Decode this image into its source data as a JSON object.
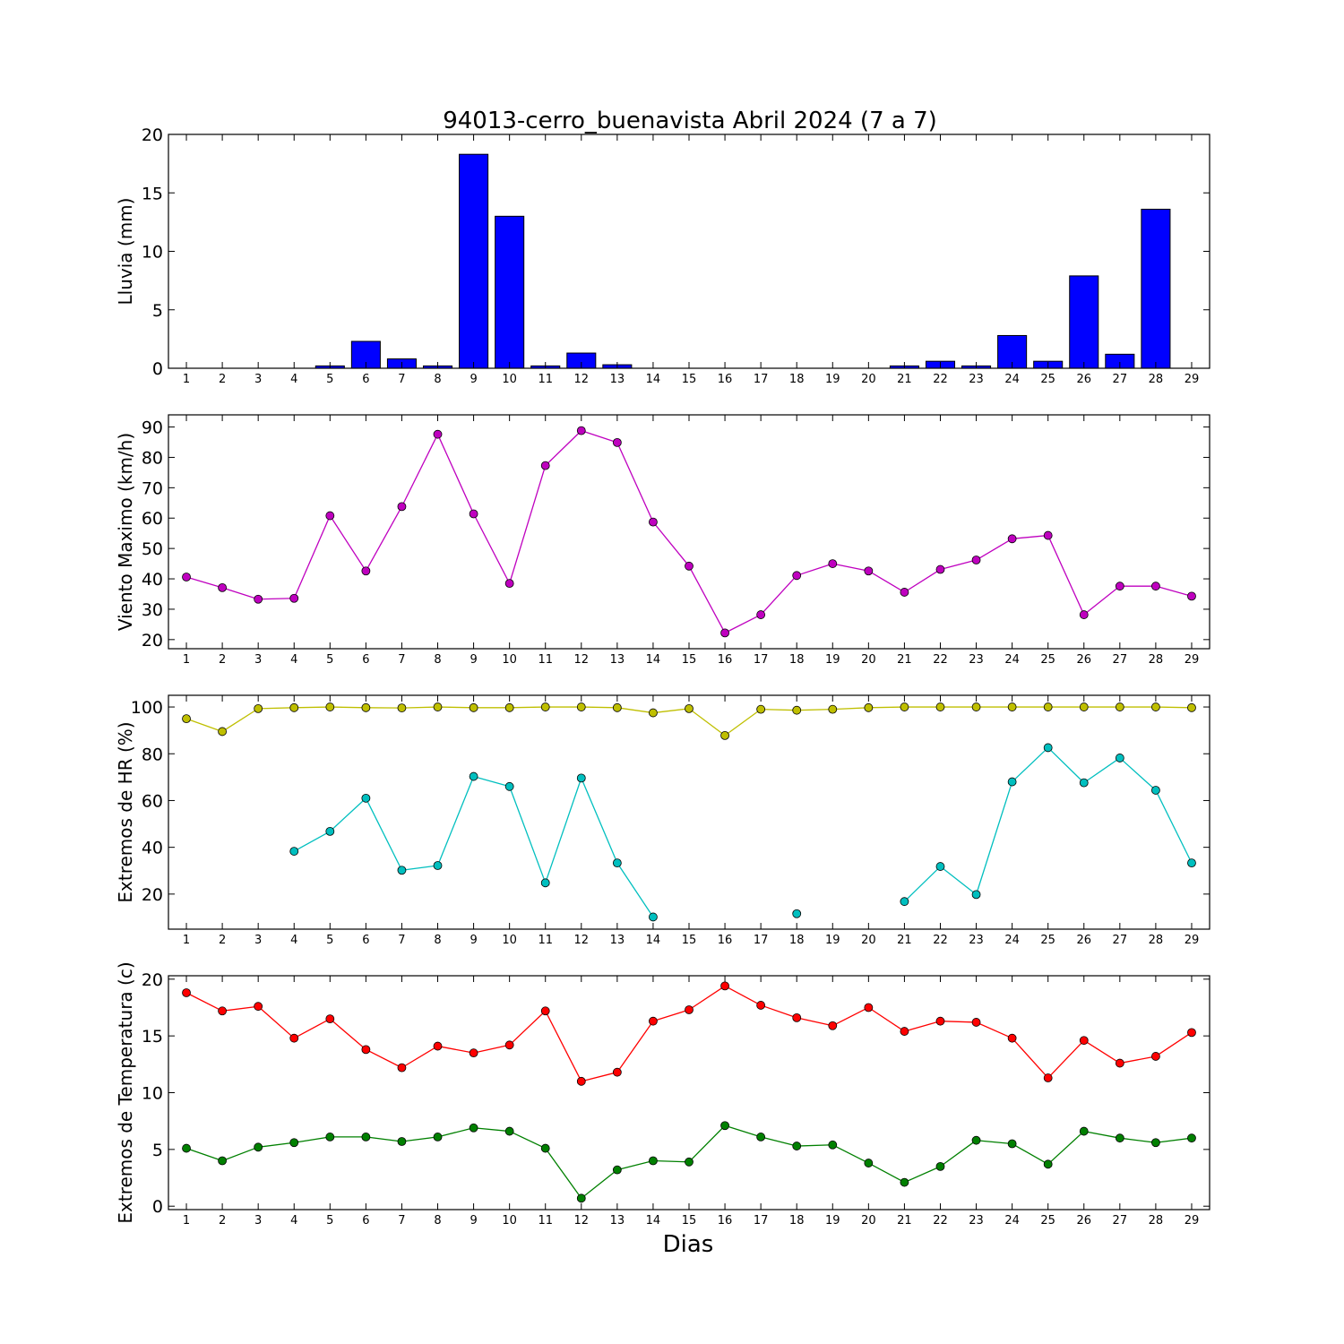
{
  "chart_data": [
    {
      "type": "bar",
      "title": "94013-cerro_buenavista Abril 2024  (7 a 7)",
      "ylabel": "Lluvia (mm)",
      "xlabel": "",
      "categories": [
        "1",
        "2",
        "3",
        "4",
        "5",
        "6",
        "7",
        "8",
        "9",
        "10",
        "11",
        "12",
        "13",
        "14",
        "15",
        "16",
        "17",
        "18",
        "19",
        "20",
        "21",
        "22",
        "23",
        "24",
        "25",
        "26",
        "27",
        "28",
        "29"
      ],
      "values": [
        0,
        0,
        0,
        0,
        0.2,
        2.3,
        0.8,
        0.2,
        18.3,
        13.0,
        0.2,
        1.3,
        0.3,
        0,
        0,
        0,
        0,
        0,
        0,
        0,
        0.2,
        0.6,
        0.2,
        2.8,
        0.6,
        7.9,
        1.2,
        13.6,
        0
      ],
      "ylim": [
        0,
        20
      ],
      "yticks": [
        0,
        5,
        10,
        15,
        20
      ],
      "color": "#0000ff"
    },
    {
      "type": "line",
      "ylabel": "Viento Maximo (km/h)",
      "xlabel": "",
      "x": [
        1,
        2,
        3,
        4,
        5,
        6,
        7,
        8,
        9,
        10,
        11,
        12,
        13,
        14,
        15,
        16,
        17,
        18,
        19,
        20,
        21,
        22,
        23,
        24,
        25,
        26,
        27,
        28,
        29
      ],
      "series": [
        {
          "color": "#bf00bf",
          "values": [
            40.6,
            37.1,
            33.3,
            33.6,
            60.8,
            42.6,
            63.8,
            87.6,
            61.4,
            38.5,
            77.3,
            88.8,
            84.9,
            58.7,
            44.2,
            22.2,
            28.2,
            41.1,
            45.0,
            42.6,
            35.6,
            43.1,
            46.2,
            53.2,
            54.3,
            28.2,
            37.6,
            37.6,
            34.3
          ]
        }
      ],
      "ylim": [
        17,
        94
      ],
      "yticks": [
        20,
        30,
        40,
        50,
        60,
        70,
        80,
        90
      ]
    },
    {
      "type": "line",
      "ylabel": "Extremos de HR (%)",
      "xlabel": "",
      "x": [
        1,
        2,
        3,
        4,
        5,
        6,
        7,
        8,
        9,
        10,
        11,
        12,
        13,
        14,
        15,
        16,
        17,
        18,
        19,
        20,
        21,
        22,
        23,
        24,
        25,
        26,
        27,
        28,
        29
      ],
      "series": [
        {
          "color": "#bfbf00",
          "values": [
            95,
            89.5,
            99.3,
            99.7,
            100,
            99.7,
            99.6,
            100,
            99.7,
            99.7,
            100,
            100,
            99.7,
            97.5,
            99.3,
            87.8,
            99,
            98.6,
            99,
            99.7,
            100,
            100,
            100,
            100,
            100,
            100,
            100,
            100,
            99.7
          ]
        },
        {
          "color": "#00bfbf",
          "values": [
            null,
            null,
            null,
            38.3,
            46.8,
            61,
            30.2,
            32.2,
            70.3,
            66,
            24.8,
            69.6,
            33.3,
            10.2,
            null,
            null,
            null,
            11.6,
            null,
            null,
            16.8,
            31.8,
            19.8,
            68,
            82.6,
            67.6,
            78.2,
            64.4,
            33.3
          ]
        }
      ],
      "ylim": [
        5,
        105
      ],
      "yticks": [
        20,
        40,
        60,
        80,
        100
      ]
    },
    {
      "type": "line",
      "ylabel": "Extremos de Temperatura (c)",
      "xlabel": "Dias",
      "x": [
        1,
        2,
        3,
        4,
        5,
        6,
        7,
        8,
        9,
        10,
        11,
        12,
        13,
        14,
        15,
        16,
        17,
        18,
        19,
        20,
        21,
        22,
        23,
        24,
        25,
        26,
        27,
        28,
        29
      ],
      "series": [
        {
          "color": "#ff0000",
          "values": [
            18.8,
            17.2,
            17.6,
            14.8,
            16.5,
            13.8,
            12.2,
            14.1,
            13.5,
            14.2,
            17.2,
            11.0,
            11.8,
            16.3,
            17.3,
            19.4,
            17.7,
            16.6,
            15.9,
            17.5,
            15.4,
            16.3,
            16.2,
            14.8,
            11.3,
            14.6,
            12.6,
            13.2,
            15.3
          ]
        },
        {
          "color": "#008000",
          "values": [
            5.1,
            4.0,
            5.2,
            5.6,
            6.1,
            6.1,
            5.7,
            6.1,
            6.9,
            6.6,
            5.1,
            0.7,
            3.2,
            4.0,
            3.9,
            7.1,
            6.1,
            5.3,
            5.4,
            3.8,
            2.1,
            3.5,
            5.8,
            5.5,
            3.7,
            6.6,
            6.0,
            5.6,
            6.0
          ]
        }
      ],
      "ylim": [
        -0.3,
        20.3
      ],
      "yticks": [
        0,
        5,
        10,
        15,
        20
      ]
    }
  ]
}
